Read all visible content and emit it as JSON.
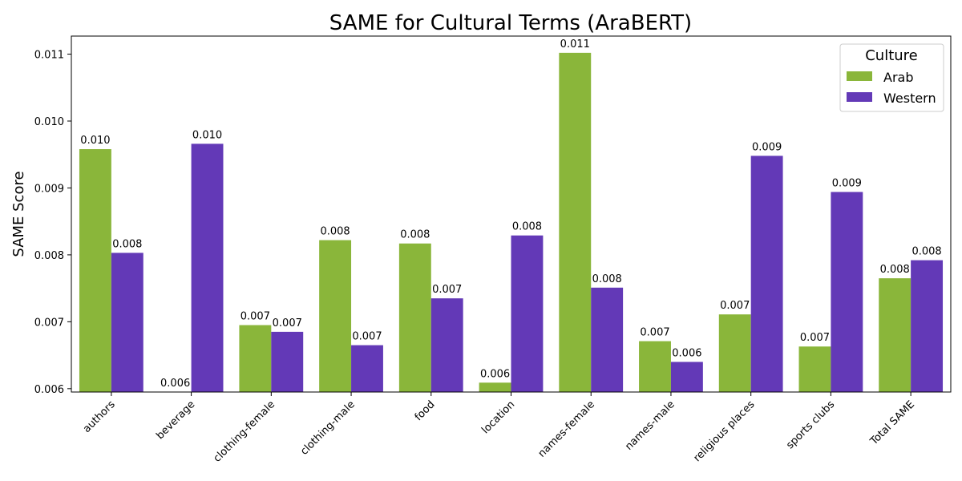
{
  "chart_data": {
    "type": "bar",
    "title": "SAME for Cultural Terms (AraBERT)",
    "xlabel": "",
    "ylabel": "SAME Score",
    "ylim": [
      0.00595,
      0.01127
    ],
    "yticks": [
      "0.006",
      "0.007",
      "0.008",
      "0.009",
      "0.010",
      "0.011"
    ],
    "ytick_values": [
      0.006,
      0.007,
      0.008,
      0.009,
      0.01,
      0.011
    ],
    "grid": false,
    "legend": {
      "title": "Culture",
      "position": "top-right"
    },
    "categories": [
      "authors",
      "beverage",
      "clothing-female",
      "clothing-male",
      "food",
      "location",
      "names-female",
      "names-male",
      "religious places",
      "sports clubs",
      "Total SAME"
    ],
    "series": [
      {
        "name": "Arab",
        "color": "#8ab63a",
        "values": [
          0.00958,
          0.00595,
          0.00695,
          0.00822,
          0.00817,
          0.00609,
          0.01102,
          0.00671,
          0.00711,
          0.00663,
          0.00765
        ],
        "labels": [
          "0.010",
          "0.006",
          "0.007",
          "0.008",
          "0.008",
          "0.006",
          "0.011",
          "0.007",
          "0.007",
          "0.007",
          "0.008"
        ]
      },
      {
        "name": "Western",
        "color": "#6339b7",
        "values": [
          0.00803,
          0.00966,
          0.00685,
          0.00665,
          0.00735,
          0.00829,
          0.00751,
          0.0064,
          0.00948,
          0.00894,
          0.00792
        ],
        "labels": [
          "0.008",
          "0.010",
          "0.007",
          "0.007",
          "0.007",
          "0.008",
          "0.008",
          "0.006",
          "0.009",
          "0.009",
          "0.008"
        ]
      }
    ]
  }
}
